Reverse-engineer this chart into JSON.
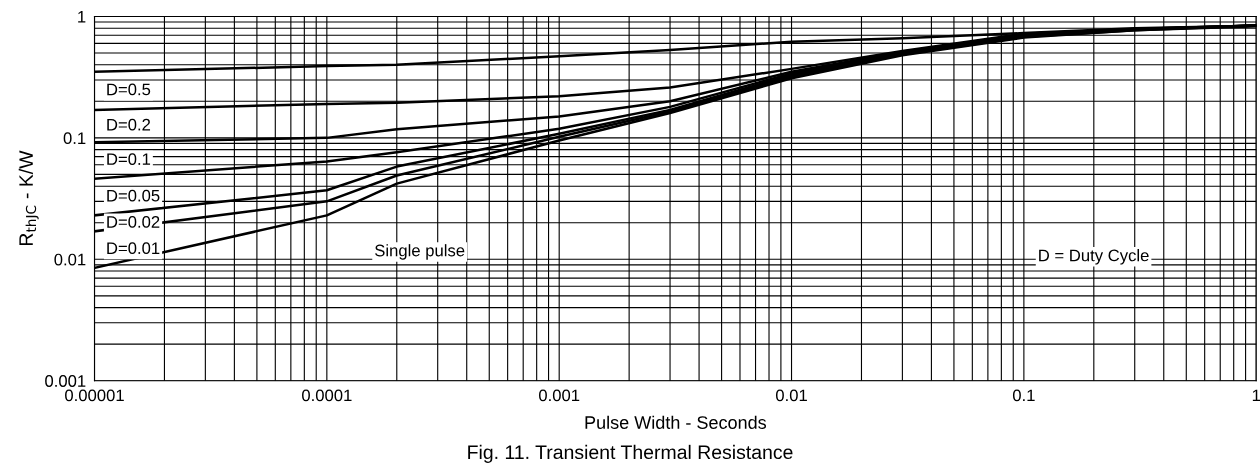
{
  "chart_data": {
    "type": "line",
    "title": "Fig. 11. Transient Thermal Resistance",
    "xlabel": "Pulse Width - Seconds",
    "ylabel": "R$_{thJC}$ - K/W",
    "x": [
      1e-05,
      0.0001,
      0.0002,
      0.001,
      0.003,
      0.01,
      0.03,
      0.1,
      0.3,
      1
    ],
    "series": [
      {
        "name": "D=0.5",
        "color": "#000000",
        "values": [
          0.35,
          0.39,
          0.4,
          0.47,
          0.53,
          0.62,
          0.66,
          0.73,
          0.8,
          0.84
        ]
      },
      {
        "name": "D=0.2",
        "color": "#000000",
        "values": [
          0.17,
          0.19,
          0.195,
          0.22,
          0.26,
          0.37,
          0.52,
          0.72,
          0.79,
          0.84
        ]
      },
      {
        "name": "D=0.1",
        "color": "#000000",
        "values": [
          0.092,
          0.1,
          0.118,
          0.15,
          0.2,
          0.35,
          0.51,
          0.71,
          0.79,
          0.84
        ]
      },
      {
        "name": "D=0.05",
        "color": "#000000",
        "values": [
          0.046,
          0.064,
          0.076,
          0.119,
          0.18,
          0.34,
          0.5,
          0.7,
          0.78,
          0.84
        ]
      },
      {
        "name": "D=0.02",
        "color": "#000000",
        "values": [
          0.023,
          0.037,
          0.058,
          0.108,
          0.17,
          0.33,
          0.49,
          0.69,
          0.78,
          0.84
        ]
      },
      {
        "name": "D=0.01",
        "color": "#000000",
        "values": [
          0.017,
          0.03,
          0.049,
          0.102,
          0.165,
          0.32,
          0.485,
          0.68,
          0.77,
          0.84
        ]
      },
      {
        "name": "Single pulse",
        "color": "#000000",
        "values": [
          0.0085,
          0.023,
          0.042,
          0.095,
          0.16,
          0.31,
          0.48,
          0.67,
          0.77,
          0.83
        ]
      }
    ],
    "annotations": [
      "D = Duty Cycle"
    ],
    "log": "xy",
    "xlim": [
      1e-05,
      1
    ],
    "ylim": [
      0.001,
      1
    ],
    "xticks": [
      {
        "value": 1e-05,
        "label": "0.00001"
      },
      0.0001,
      0.001,
      0.01,
      0.1,
      1
    ],
    "yticks": [
      0.001,
      0.01,
      0.1,
      1
    ],
    "grid": true,
    "legend": false,
    "marker": "none",
    "line_style": "solid"
  }
}
